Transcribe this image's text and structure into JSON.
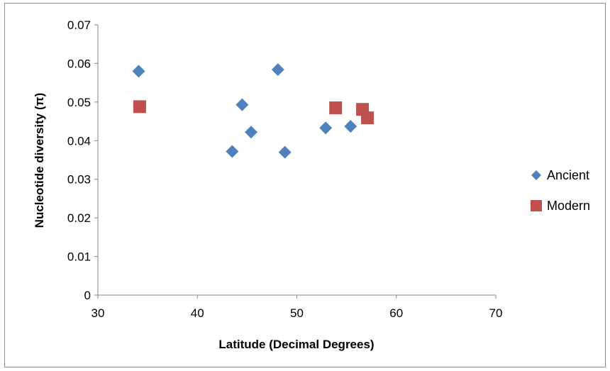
{
  "chart_data": {
    "type": "scatter",
    "title": "",
    "xlabel": "Latitude (Decimal Degrees)",
    "ylabel": "Nucleotide diversity (π)",
    "xlim": [
      30,
      70
    ],
    "ylim": [
      0,
      0.07
    ],
    "xticks": [
      "30",
      "40",
      "50",
      "60",
      "70"
    ],
    "yticks": [
      "0",
      "0.01",
      "0.02",
      "0.03",
      "0.04",
      "0.05",
      "0.06",
      "0.07"
    ],
    "grid": false,
    "legend": "right",
    "series": [
      {
        "name": "Ancient",
        "marker": "diamond",
        "color": "#4f81bd",
        "points": [
          {
            "x": 34.1,
            "y": 0.058
          },
          {
            "x": 43.5,
            "y": 0.0372
          },
          {
            "x": 44.5,
            "y": 0.0493
          },
          {
            "x": 45.4,
            "y": 0.0422
          },
          {
            "x": 48.1,
            "y": 0.0584
          },
          {
            "x": 48.8,
            "y": 0.037
          },
          {
            "x": 52.9,
            "y": 0.0433
          },
          {
            "x": 55.4,
            "y": 0.0437
          }
        ]
      },
      {
        "name": "Modern",
        "marker": "square",
        "color": "#c0504d",
        "points": [
          {
            "x": 34.2,
            "y": 0.0488
          },
          {
            "x": 53.9,
            "y": 0.0485
          },
          {
            "x": 56.6,
            "y": 0.0481
          },
          {
            "x": 57.1,
            "y": 0.0459
          }
        ]
      }
    ]
  }
}
